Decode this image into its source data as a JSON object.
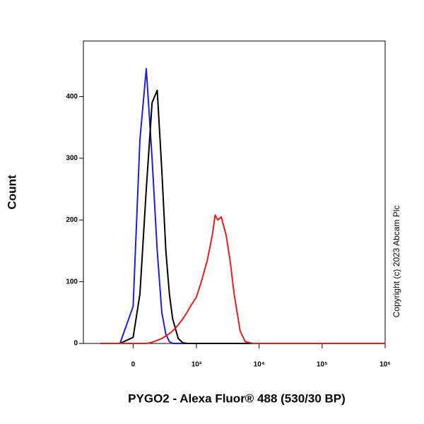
{
  "chart_data": {
    "type": "line",
    "x_label": "PYGO2 - Alexa Fluor® 488 (530/30 BP)",
    "y_label": "Count",
    "copyright": "Copyright (c) 2023 Abcam Plc",
    "x_scale": "biexponential",
    "x": [
      -300,
      -100,
      0,
      50,
      100,
      150,
      200,
      250,
      300,
      350,
      400,
      500,
      600,
      700,
      800,
      1000,
      1200,
      1500,
      1800,
      2000,
      2200,
      2500,
      3000,
      3500,
      4000,
      5000,
      6000,
      8000,
      10000,
      100000,
      1000000
    ],
    "series": [
      {
        "color": "#1f1fd6",
        "values": [
          0,
          0,
          60,
          330,
          445,
          300,
          150,
          50,
          15,
          3,
          0,
          0,
          0,
          0,
          0,
          0,
          0,
          0,
          0,
          0,
          0,
          0,
          0,
          0,
          0,
          0,
          0,
          0,
          0,
          0,
          0
        ]
      },
      {
        "color": "#000000",
        "values": [
          0,
          0,
          10,
          80,
          250,
          390,
          410,
          280,
          150,
          80,
          40,
          8,
          1,
          0,
          0,
          0,
          0,
          0,
          0,
          0,
          0,
          0,
          0,
          0,
          0,
          0,
          0,
          0,
          0,
          0,
          0
        ]
      },
      {
        "color": "#e02020",
        "values": [
          0,
          0,
          0,
          0,
          0,
          2,
          5,
          8,
          12,
          16,
          20,
          30,
          40,
          50,
          60,
          75,
          100,
          135,
          175,
          208,
          200,
          205,
          175,
          130,
          80,
          20,
          3,
          0,
          0,
          0,
          0
        ]
      }
    ],
    "xlim": [
      -600,
      1000000
    ],
    "xticks": [
      0,
      {
        "value": 1000,
        "label": "10³"
      },
      {
        "value": 10000,
        "label": "10⁴"
      },
      {
        "value": 100000,
        "label": "10⁵"
      },
      {
        "value": 1000000,
        "label": "10⁶"
      }
    ],
    "ylim": [
      0,
      490
    ],
    "yticks": [
      0,
      100,
      200,
      300,
      400
    ]
  }
}
